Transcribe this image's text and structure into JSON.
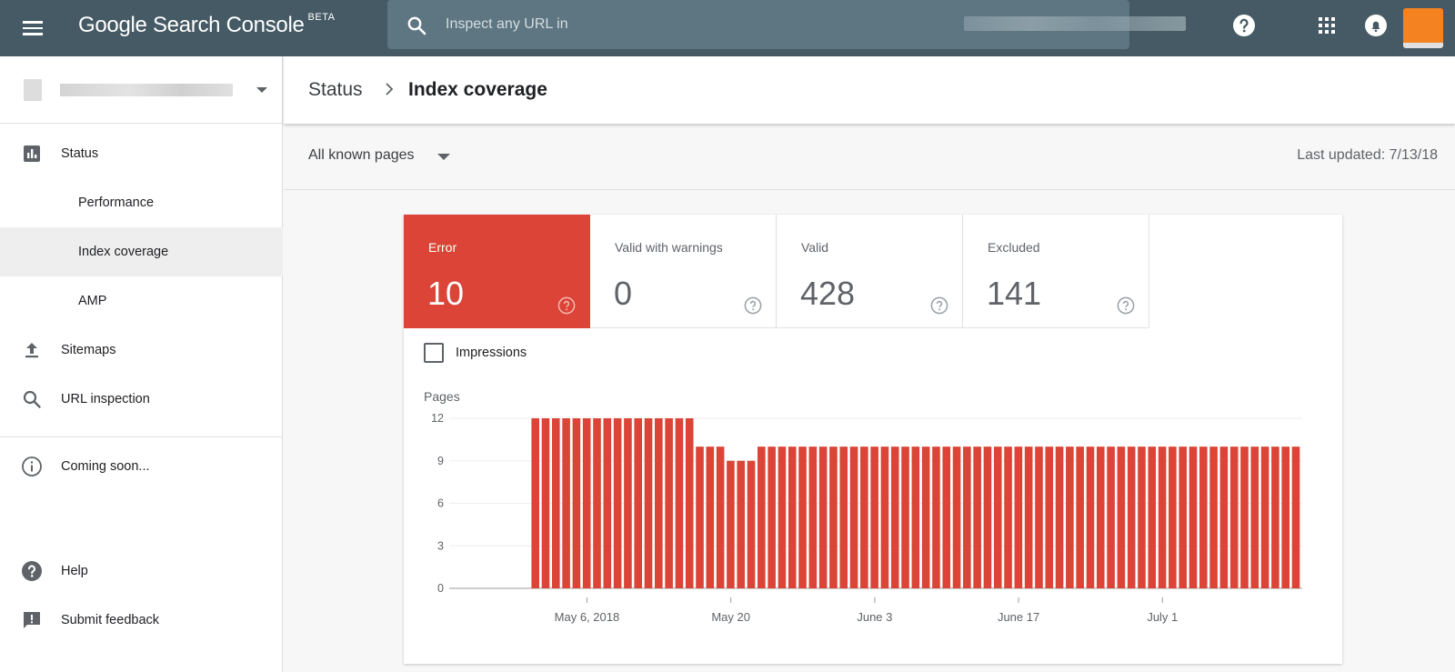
{
  "app": {
    "title": "Google Search Console",
    "badge": "BETA"
  },
  "search": {
    "placeholder": "Inspect any URL in"
  },
  "sidebar": {
    "items": [
      {
        "id": "status",
        "label": "Status",
        "icon": "bar-chart-icon"
      },
      {
        "id": "performance",
        "label": "Performance"
      },
      {
        "id": "index-coverage",
        "label": "Index coverage",
        "active": true
      },
      {
        "id": "amp",
        "label": "AMP"
      },
      {
        "id": "sitemaps",
        "label": "Sitemaps",
        "icon": "upload-icon"
      },
      {
        "id": "url-inspection",
        "label": "URL inspection",
        "icon": "search-icon"
      },
      {
        "id": "coming-soon",
        "label": "Coming soon...",
        "icon": "info-icon"
      },
      {
        "id": "help",
        "label": "Help",
        "icon": "help-icon"
      },
      {
        "id": "submit-feedback",
        "label": "Submit feedback",
        "icon": "feedback-icon"
      }
    ]
  },
  "header": {
    "breadcrumb": [
      "Status",
      "Index coverage"
    ]
  },
  "filter": {
    "selected": "All known pages"
  },
  "last_updated": "Last updated: 7/13/18",
  "tiles": [
    {
      "label": "Error",
      "value": "10",
      "selected": true
    },
    {
      "label": "Valid with warnings",
      "value": "0"
    },
    {
      "label": "Valid",
      "value": "428"
    },
    {
      "label": "Excluded",
      "value": "141"
    }
  ],
  "impressions": {
    "label": "Impressions",
    "checked": false
  },
  "colors": {
    "topbar": "#455a64",
    "error": "#db4437",
    "accent": "#1a73e8"
  },
  "chart_data": {
    "type": "bar",
    "ylabel": "Pages",
    "ylim": [
      0,
      12
    ],
    "yticks": [
      0,
      3,
      6,
      9,
      12
    ],
    "series": [
      {
        "values": [
          12,
          12,
          12,
          12,
          12,
          12,
          12,
          12,
          12,
          12,
          12,
          12,
          12,
          12,
          12,
          12,
          10,
          10,
          10,
          9,
          9,
          9,
          10,
          10,
          10,
          10,
          10,
          10,
          10,
          10,
          10,
          10,
          10,
          10,
          10,
          10,
          10,
          10,
          10,
          10,
          10,
          10,
          10,
          10,
          10,
          10,
          10,
          10,
          10,
          10,
          10,
          10,
          10,
          10,
          10,
          10,
          10,
          10,
          10,
          10,
          10,
          10,
          10,
          10,
          10,
          10,
          10,
          10,
          10,
          10,
          10,
          10,
          10,
          10,
          10
        ]
      }
    ],
    "x_start_slot": 8,
    "total_slots": 83,
    "xticks": [
      {
        "label": "May 6, 2018",
        "slot": 13
      },
      {
        "label": "May 20",
        "slot": 27
      },
      {
        "label": "June 3",
        "slot": 41
      },
      {
        "label": "June 17",
        "slot": 55
      },
      {
        "label": "July 1",
        "slot": 69
      }
    ],
    "grid": true,
    "bar_color": "#db4437"
  }
}
